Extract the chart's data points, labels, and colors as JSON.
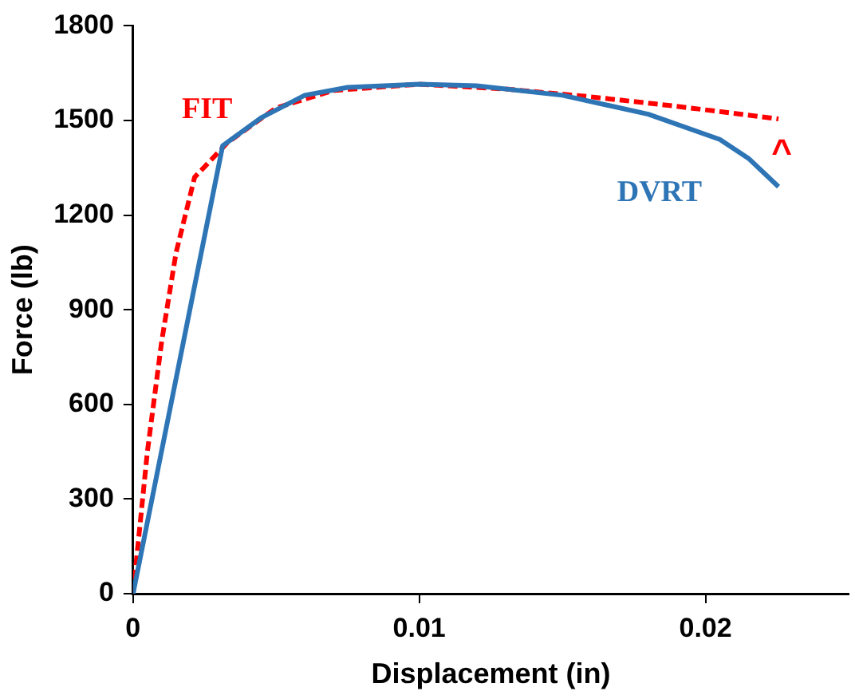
{
  "chart_data": {
    "type": "line",
    "xlabel": "Displacement (in)",
    "ylabel": "Force (lb)",
    "xlim": [
      0,
      0.025
    ],
    "xticks": [
      0,
      0.01,
      0.02
    ],
    "ylim": [
      0,
      1800
    ],
    "yticks": [
      0,
      300,
      600,
      900,
      1200,
      1500,
      1800
    ],
    "grid": false,
    "legend": false,
    "marker": "none",
    "series": [
      {
        "name": "DVRT",
        "color": "#2e75b6",
        "line_style": "solid",
        "x": [
          0,
          0.00313,
          0.0045,
          0.006,
          0.0075,
          0.01,
          0.012,
          0.015,
          0.018,
          0.0205,
          0.0215,
          0.02255
        ],
        "values": [
          0,
          1420,
          1510,
          1580,
          1605,
          1615,
          1610,
          1580,
          1520,
          1440,
          1380,
          1290
        ]
      },
      {
        "name": "FIT",
        "color": "#ff0000",
        "line_style": "dashed",
        "x": [
          0,
          0.0005,
          0.001,
          0.0015,
          0.00215,
          0.0033,
          0.005,
          0.007,
          0.01,
          0.013,
          0.016,
          0.019,
          0.02255
        ],
        "values": [
          0,
          450,
          800,
          1080,
          1320,
          1430,
          1540,
          1595,
          1615,
          1600,
          1575,
          1545,
          1505
        ]
      }
    ],
    "annotations": [
      "^"
    ]
  }
}
